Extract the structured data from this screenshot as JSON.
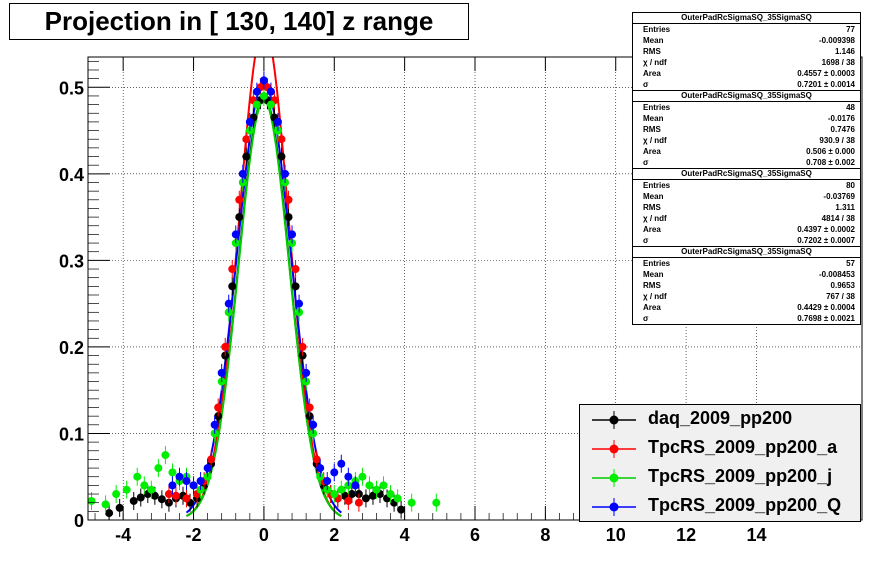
{
  "title": "Projection in [ 130, 140] z range",
  "chart_data": {
    "type": "scatter",
    "title": "Projection in [ 130, 140] z range",
    "xlabel": "",
    "ylabel": "",
    "xlim": [
      -5,
      17
    ],
    "ylim": [
      0,
      0.535
    ],
    "grid": true,
    "legend_position": "bottom-right",
    "x_ticks": [
      -4,
      -2,
      0,
      2,
      4,
      6,
      8,
      10,
      12,
      14
    ],
    "y_ticks": [
      0,
      0.1,
      0.2,
      0.3,
      0.4,
      0.5
    ],
    "x_tick_labels": [
      "-4",
      "-2",
      "0",
      "2",
      "4",
      "6",
      "8",
      "10",
      "12",
      "14"
    ],
    "y_tick_labels": [
      "0",
      "0.1",
      "0.2",
      "0.3",
      "0.4",
      "0.5"
    ],
    "series": [
      {
        "name": "daq_2009_pp200",
        "color": "#000000",
        "fit_color": "#000000",
        "fit": {
          "amp": 0.49,
          "sigma": 0.7201
        },
        "points": [
          [
            -4.4,
            0.008
          ],
          [
            -4.1,
            0.014
          ],
          [
            -3.7,
            0.022
          ],
          [
            -3.5,
            0.026
          ],
          [
            -3.3,
            0.03
          ],
          [
            -3.1,
            0.028
          ],
          [
            -2.9,
            0.024
          ],
          [
            -2.7,
            0.02
          ],
          [
            -2.5,
            0.025
          ],
          [
            -2.3,
            0.028
          ],
          [
            -2.1,
            0.02
          ],
          [
            -1.9,
            0.025
          ],
          [
            -1.7,
            0.04
          ],
          [
            -1.5,
            0.065
          ],
          [
            -1.3,
            0.12
          ],
          [
            -1.1,
            0.19
          ],
          [
            -0.9,
            0.27
          ],
          [
            -0.7,
            0.35
          ],
          [
            -0.5,
            0.42
          ],
          [
            -0.3,
            0.465
          ],
          [
            -0.1,
            0.485
          ],
          [
            0.1,
            0.485
          ],
          [
            0.3,
            0.465
          ],
          [
            0.5,
            0.42
          ],
          [
            0.7,
            0.35
          ],
          [
            0.9,
            0.27
          ],
          [
            1.1,
            0.19
          ],
          [
            1.3,
            0.12
          ],
          [
            1.5,
            0.065
          ],
          [
            1.7,
            0.04
          ],
          [
            1.9,
            0.03
          ],
          [
            2.1,
            0.025
          ],
          [
            2.3,
            0.028
          ],
          [
            2.5,
            0.03
          ],
          [
            2.7,
            0.03
          ],
          [
            2.9,
            0.025
          ],
          [
            3.1,
            0.028
          ],
          [
            3.3,
            0.03
          ],
          [
            3.5,
            0.025
          ],
          [
            3.7,
            0.02
          ],
          [
            3.9,
            0.012
          ]
        ]
      },
      {
        "name": "TpcRS_2009_pp200_a",
        "color": "#ff0000",
        "fit_color": "#ff0000",
        "fit": {
          "amp": 0.57,
          "sigma": 0.708
        },
        "points": [
          [
            -2.7,
            0.03
          ],
          [
            -2.5,
            0.028
          ],
          [
            -2.2,
            0.025
          ],
          [
            -1.9,
            0.03
          ],
          [
            -1.7,
            0.045
          ],
          [
            -1.5,
            0.07
          ],
          [
            -1.3,
            0.13
          ],
          [
            -1.1,
            0.2
          ],
          [
            -0.9,
            0.29
          ],
          [
            -0.7,
            0.37
          ],
          [
            -0.5,
            0.44
          ],
          [
            -0.3,
            0.485
          ],
          [
            -0.1,
            0.5
          ],
          [
            0.1,
            0.5
          ],
          [
            0.3,
            0.485
          ],
          [
            0.5,
            0.44
          ],
          [
            0.7,
            0.37
          ],
          [
            0.9,
            0.29
          ],
          [
            1.1,
            0.2
          ],
          [
            1.3,
            0.13
          ],
          [
            1.5,
            0.07
          ],
          [
            1.7,
            0.045
          ],
          [
            1.9,
            0.03
          ],
          [
            2.1,
            0.025
          ],
          [
            2.4,
            0.022
          ],
          [
            2.7,
            0.02
          ]
        ]
      },
      {
        "name": "TpcRS_2009_pp200_j",
        "color": "#00ee00",
        "fit_color": "#00cc00",
        "fit": {
          "amp": 0.485,
          "sigma": 0.7202
        },
        "points": [
          [
            -4.9,
            0.022
          ],
          [
            -4.5,
            0.018
          ],
          [
            -4.2,
            0.03
          ],
          [
            -3.9,
            0.035
          ],
          [
            -3.6,
            0.05
          ],
          [
            -3.4,
            0.04
          ],
          [
            -3.2,
            0.035
          ],
          [
            -3.0,
            0.06
          ],
          [
            -2.8,
            0.075
          ],
          [
            -2.6,
            0.055
          ],
          [
            -2.4,
            0.045
          ],
          [
            -2.2,
            0.05
          ],
          [
            -2.0,
            0.04
          ],
          [
            -1.8,
            0.035
          ],
          [
            -1.6,
            0.05
          ],
          [
            -1.4,
            0.1
          ],
          [
            -1.2,
            0.16
          ],
          [
            -1.0,
            0.24
          ],
          [
            -0.8,
            0.32
          ],
          [
            -0.6,
            0.39
          ],
          [
            -0.4,
            0.45
          ],
          [
            -0.2,
            0.48
          ],
          [
            0.0,
            0.49
          ],
          [
            0.2,
            0.48
          ],
          [
            0.4,
            0.45
          ],
          [
            0.6,
            0.39
          ],
          [
            0.8,
            0.32
          ],
          [
            1.0,
            0.24
          ],
          [
            1.2,
            0.16
          ],
          [
            1.4,
            0.1
          ],
          [
            1.6,
            0.05
          ],
          [
            1.8,
            0.035
          ],
          [
            2.0,
            0.03
          ],
          [
            2.2,
            0.035
          ],
          [
            2.4,
            0.04
          ],
          [
            2.6,
            0.045
          ],
          [
            2.8,
            0.05
          ],
          [
            3.0,
            0.04
          ],
          [
            3.2,
            0.035
          ],
          [
            3.4,
            0.04
          ],
          [
            3.6,
            0.03
          ],
          [
            3.8,
            0.025
          ],
          [
            4.2,
            0.02
          ],
          [
            4.9,
            0.02
          ]
        ]
      },
      {
        "name": "TpcRS_2009_pp200_Q",
        "color": "#0000ff",
        "fit_color": "#0000ff",
        "fit": {
          "amp": 0.505,
          "sigma": 0.7698
        },
        "points": [
          [
            -2.6,
            0.04
          ],
          [
            -2.4,
            0.05
          ],
          [
            -2.2,
            0.045
          ],
          [
            -2.0,
            0.04
          ],
          [
            -1.8,
            0.045
          ],
          [
            -1.6,
            0.06
          ],
          [
            -1.4,
            0.11
          ],
          [
            -1.2,
            0.17
          ],
          [
            -1.0,
            0.25
          ],
          [
            -0.8,
            0.33
          ],
          [
            -0.6,
            0.4
          ],
          [
            -0.4,
            0.46
          ],
          [
            -0.2,
            0.495
          ],
          [
            0.0,
            0.508
          ],
          [
            0.2,
            0.495
          ],
          [
            0.4,
            0.46
          ],
          [
            0.6,
            0.4
          ],
          [
            0.8,
            0.33
          ],
          [
            1.0,
            0.25
          ],
          [
            1.2,
            0.17
          ],
          [
            1.4,
            0.11
          ],
          [
            1.6,
            0.06
          ],
          [
            1.8,
            0.045
          ],
          [
            2.0,
            0.055
          ],
          [
            2.2,
            0.065
          ],
          [
            2.4,
            0.05
          ],
          [
            2.6,
            0.04
          ]
        ]
      }
    ],
    "stats": [
      {
        "title": "OuterPadRcSigmaSQ_35SigmaSQ",
        "rows": [
          [
            "Entries",
            "77"
          ],
          [
            "Mean",
            "-0.009398"
          ],
          [
            "RMS",
            "1.146"
          ],
          [
            "χ  / ndf",
            "1698 / 38"
          ],
          [
            "Area",
            "0.4557 ± 0.0003"
          ],
          [
            "σ",
            "0.7201 ± 0.0014"
          ]
        ]
      },
      {
        "title": "OuterPadRcSigmaSQ_35SigmaSQ",
        "rows": [
          [
            "Entries",
            "48"
          ],
          [
            "Mean",
            "-0.0176"
          ],
          [
            "RMS",
            "0.7476"
          ],
          [
            "χ  / ndf",
            "930.9 / 38"
          ],
          [
            "Area",
            "0.506 ± 0.000"
          ],
          [
            "σ",
            "0.708 ± 0.002"
          ]
        ]
      },
      {
        "title": "OuterPadRcSigmaSQ_35SigmaSQ",
        "rows": [
          [
            "Entries",
            "80"
          ],
          [
            "Mean",
            "-0.03769"
          ],
          [
            "RMS",
            "1.311"
          ],
          [
            "χ  / ndf",
            "4814 / 38"
          ],
          [
            "Area",
            "0.4397 ± 0.0002"
          ],
          [
            "σ",
            "0.7202 ± 0.0007"
          ]
        ]
      },
      {
        "title": "OuterPadRcSigmaSQ_35SigmaSQ",
        "rows": [
          [
            "Entries",
            "57"
          ],
          [
            "Mean",
            "-0.008453"
          ],
          [
            "RMS",
            "0.9653"
          ],
          [
            "χ  / ndf",
            "767 / 38"
          ],
          [
            "Area",
            "0.4429 ± 0.0004"
          ],
          [
            "σ",
            "0.7698 ± 0.0021"
          ]
        ]
      }
    ]
  }
}
